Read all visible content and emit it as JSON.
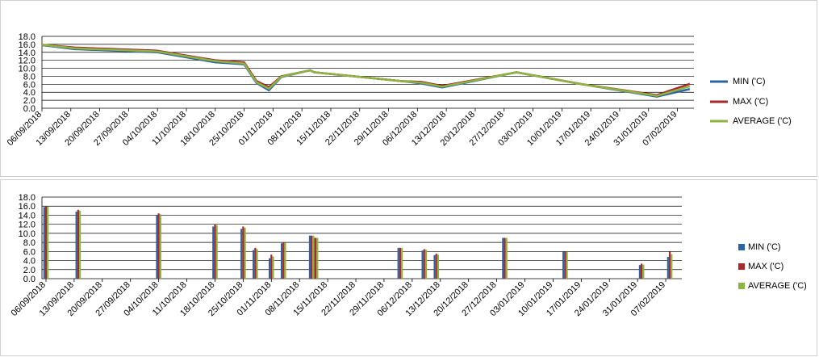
{
  "chart_data": [
    {
      "type": "line",
      "x": [
        "06/09/2018",
        "14/09/2018",
        "04/10/2018",
        "18/10/2018",
        "25/10/2018",
        "28/10/2018",
        "31/10/2018",
        "03/11/2018",
        "10/11/2018",
        "11/11/2018",
        "02/12/2018",
        "07/12/2018",
        "12/12/2018",
        "30/12/2018",
        "15/01/2019",
        "02/02/2019",
        "10/02/2019"
      ],
      "series": [
        {
          "name": "MIN ('C)",
          "color": "#2a64a6",
          "values": [
            15.8,
            14.8,
            14.0,
            11.5,
            11.0,
            6.3,
            4.5,
            7.8,
            9.5,
            9.0,
            6.8,
            6.2,
            5.2,
            9.0,
            6.0,
            2.9,
            4.8
          ]
        },
        {
          "name": "MAX ('C)",
          "color": "#a8282b",
          "values": [
            15.9,
            15.2,
            14.4,
            12.0,
            11.5,
            6.8,
            5.3,
            8.0,
            9.5,
            9.0,
            6.8,
            6.6,
            5.6,
            9.0,
            6.0,
            3.3,
            6.1
          ]
        },
        {
          "name": "AVERAGE ('C)",
          "color": "#8db43e",
          "values": [
            15.9,
            15.0,
            14.2,
            11.8,
            11.2,
            6.5,
            4.9,
            7.9,
            9.5,
            9.0,
            6.8,
            6.4,
            5.4,
            9.0,
            6.0,
            3.1,
            5.5
          ]
        }
      ],
      "xlim": [
        "06/09/2018",
        "11/02/2019"
      ],
      "xticks": [
        "06/09/2018",
        "13/09/2018",
        "20/09/2018",
        "27/09/2018",
        "04/10/2018",
        "11/10/2018",
        "18/10/2018",
        "25/10/2018",
        "01/11/2018",
        "08/11/2018",
        "15/11/2018",
        "22/11/2018",
        "29/11/2018",
        "06/12/2018",
        "13/12/2018",
        "20/12/2018",
        "27/12/2018",
        "03/01/2019",
        "10/01/2019",
        "17/01/2019",
        "24/01/2019",
        "31/01/2019",
        "07/02/2019"
      ],
      "ylim": [
        0,
        18
      ],
      "yticks": [
        {
          "value": 0,
          "label": "0.0"
        },
        {
          "value": 2,
          "label": "2.0"
        },
        {
          "value": 4,
          "label": "4.0"
        },
        {
          "value": 6,
          "label": "6.0"
        },
        {
          "value": 8,
          "label": "8.0"
        },
        {
          "value": 10,
          "label": "10.0"
        },
        {
          "value": 12,
          "label": "12.0"
        },
        {
          "value": 14,
          "label": "14.0"
        },
        {
          "value": 16,
          "label": "16.0"
        },
        {
          "value": 18,
          "label": "18.0"
        }
      ],
      "grid": true,
      "legend": "right"
    },
    {
      "type": "bar",
      "x": [
        "06/09/2018",
        "14/09/2018",
        "04/10/2018",
        "18/10/2018",
        "25/10/2018",
        "28/10/2018",
        "01/11/2018",
        "04/11/2018",
        "11/11/2018",
        "12/11/2018",
        "03/12/2018",
        "09/12/2018",
        "12/12/2018",
        "29/12/2018",
        "13/01/2019",
        "01/02/2019",
        "08/02/2019"
      ],
      "series": [
        {
          "name": "MIN ('C)",
          "color": "#2a64a6",
          "values": [
            15.8,
            14.8,
            14.0,
            11.5,
            11.0,
            6.3,
            4.5,
            7.8,
            9.5,
            9.0,
            6.8,
            6.2,
            5.2,
            9.0,
            6.0,
            3.0,
            4.8
          ]
        },
        {
          "name": "MAX ('C)",
          "color": "#a8282b",
          "values": [
            15.9,
            15.2,
            14.4,
            12.0,
            11.5,
            6.8,
            5.3,
            8.0,
            9.5,
            9.0,
            6.8,
            6.5,
            5.5,
            9.0,
            6.0,
            3.3,
            6.0
          ]
        },
        {
          "name": "AVERAGE ('C)",
          "color": "#8db43e",
          "values": [
            15.9,
            15.0,
            14.2,
            11.8,
            11.2,
            6.5,
            4.9,
            7.9,
            9.5,
            9.0,
            6.8,
            6.4,
            5.3,
            9.0,
            6.0,
            3.1,
            5.4
          ]
        }
      ],
      "xlim": [
        "05/09/2018",
        "11/02/2019"
      ],
      "xticks": [
        "06/09/2018",
        "13/09/2018",
        "20/09/2018",
        "27/09/2018",
        "04/10/2018",
        "11/10/2018",
        "18/10/2018",
        "25/10/2018",
        "01/11/2018",
        "08/11/2018",
        "15/11/2018",
        "22/11/2018",
        "29/11/2018",
        "06/12/2018",
        "13/12/2018",
        "20/12/2018",
        "27/12/2018",
        "03/01/2019",
        "10/01/2019",
        "17/01/2019",
        "24/01/2019",
        "31/01/2019",
        "07/02/2019"
      ],
      "ylim": [
        0,
        18
      ],
      "yticks": [
        {
          "value": 0,
          "label": "0.0"
        },
        {
          "value": 2,
          "label": "2.0"
        },
        {
          "value": 4,
          "label": "4.0"
        },
        {
          "value": 6,
          "label": "6.0"
        },
        {
          "value": 8,
          "label": "8.0"
        },
        {
          "value": 10,
          "label": "10.0"
        },
        {
          "value": 12,
          "label": "12.0"
        },
        {
          "value": 14,
          "label": "14.0"
        },
        {
          "value": 16,
          "label": "16.0"
        },
        {
          "value": 18,
          "label": "18.0"
        }
      ],
      "grid": true,
      "legend": "right"
    }
  ]
}
